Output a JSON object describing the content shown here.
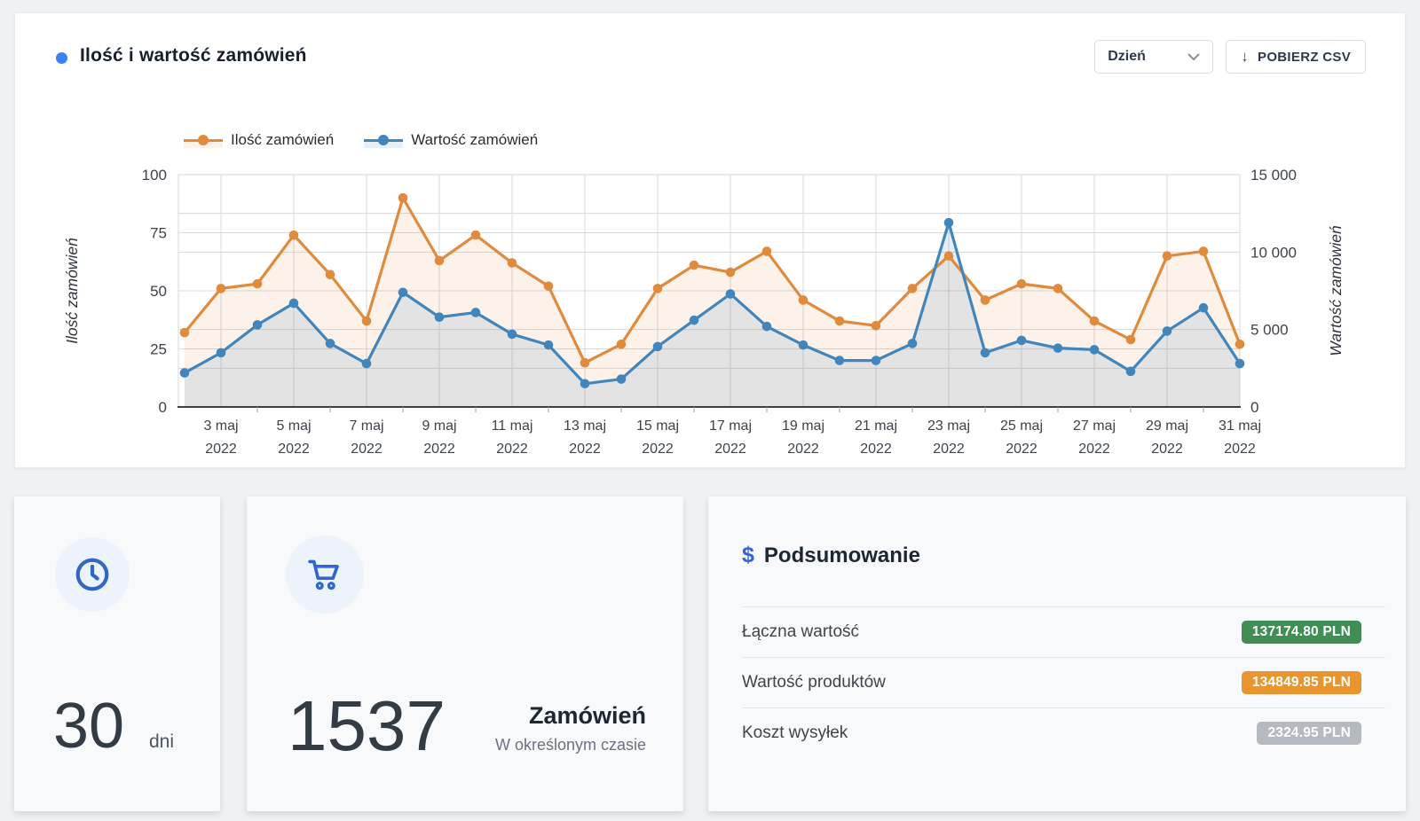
{
  "header": {
    "title": "Ilość i wartość zamówień",
    "title_dot_color": "#3b82f6",
    "period_select": {
      "value": "Dzień"
    },
    "download_button": {
      "label": "POBIERZ CSV",
      "icon_glyph": "↓"
    }
  },
  "chart_data": {
    "type": "line",
    "title": "Ilość i wartość zamówień",
    "grid": true,
    "legend_position": "top-left",
    "categories": [
      "2 maj 2022",
      "3 maj 2022",
      "4 maj 2022",
      "5 maj 2022",
      "6 maj 2022",
      "7 maj 2022",
      "8 maj 2022",
      "9 maj 2022",
      "10 maj 2022",
      "11 maj 2022",
      "12 maj 2022",
      "13 maj 2022",
      "14 maj 2022",
      "15 maj 2022",
      "16 maj 2022",
      "17 maj 2022",
      "18 maj 2022",
      "19 maj 2022",
      "20 maj 2022",
      "21 maj 2022",
      "22 maj 2022",
      "23 maj 2022",
      "24 maj 2022",
      "25 maj 2022",
      "26 maj 2022",
      "27 maj 2022",
      "28 maj 2022",
      "29 maj 2022",
      "30 maj 2022",
      "31 maj 2022"
    ],
    "x_tick_labels": [
      "3 maj 2022",
      "5 maj 2022",
      "7 maj 2022",
      "9 maj 2022",
      "11 maj 2022",
      "13 maj 2022",
      "15 maj 2022",
      "17 maj 2022",
      "19 maj 2022",
      "21 maj 2022",
      "23 maj 2022",
      "25 maj 2022",
      "27 maj 2022",
      "29 maj 2022",
      "31 maj 2022"
    ],
    "series": [
      {
        "name": "Ilość zamówień",
        "axis": "left",
        "color": "#e08a3c",
        "fill": "rgba(224,138,60,0.11)",
        "values": [
          32,
          51,
          53,
          74,
          57,
          37,
          90,
          63,
          74,
          62,
          52,
          19,
          27,
          51,
          61,
          58,
          67,
          46,
          37,
          35,
          51,
          65,
          46,
          53,
          51,
          37,
          29,
          65,
          67,
          27
        ]
      },
      {
        "name": "Wartość zamówień",
        "axis": "right",
        "color": "#4185bd",
        "fill": "rgba(66,133,189,0.13)",
        "values": [
          2200,
          3500,
          5300,
          6700,
          4100,
          2800,
          7400,
          5800,
          6100,
          4700,
          4000,
          1500,
          1800,
          3900,
          5600,
          7300,
          5200,
          4000,
          3000,
          3000,
          4100,
          11900,
          3500,
          4300,
          3800,
          3700,
          2300,
          4900,
          6400,
          2800
        ]
      }
    ],
    "left_axis": {
      "label": "Ilość zamówień",
      "range": [
        0,
        100
      ],
      "ticks": [
        0,
        25,
        50,
        75,
        100
      ]
    },
    "right_axis": {
      "label": "Wartość zamówień",
      "range": [
        0,
        15000
      ],
      "ticks": [
        {
          "v": 0,
          "label": "0"
        },
        {
          "v": 5000,
          "label": "5 000"
        },
        {
          "v": 10000,
          "label": "10 000"
        },
        {
          "v": 15000,
          "label": "15 000"
        }
      ],
      "minor_gridlines": [
        2500,
        12500
      ]
    }
  },
  "cards": {
    "period": {
      "value": "30",
      "unit": "dni",
      "icon": "clock-icon"
    },
    "orders": {
      "value": "1537",
      "label": "Zamówień",
      "sublabel": "W określonym czasie",
      "icon": "cart-icon"
    },
    "summary": {
      "title": "Podsumowanie",
      "icon_glyph": "$",
      "rows": [
        {
          "label": "Łączna wartość",
          "value": "137174.80 PLN",
          "color": "#3f8f55"
        },
        {
          "label": "Wartość produktów",
          "value": "134849.85 PLN",
          "color": "#e8952f"
        },
        {
          "label": "Koszt wysyłek",
          "value": "2324.95 PLN",
          "color": "#b5bac0"
        }
      ]
    }
  }
}
